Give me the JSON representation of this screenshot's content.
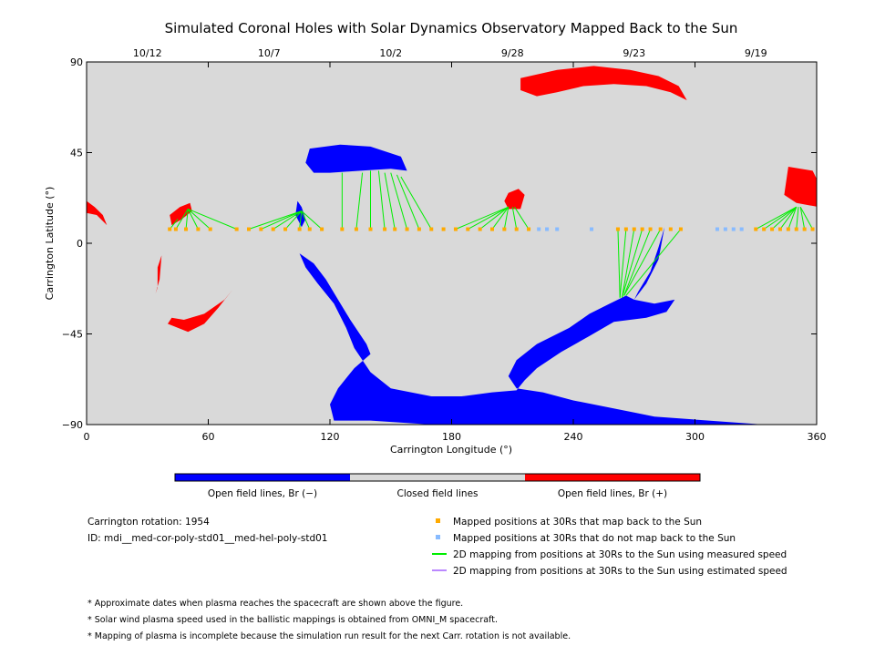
{
  "chart_data": {
    "type": "scatter",
    "title": "Simulated Coronal Holes with Solar Dynamics Observatory Mapped Back to the Sun",
    "xlabel": "Carrington Longitude (°)",
    "ylabel": "Carrington Latitude (°)",
    "xlim": [
      0,
      360
    ],
    "ylim": [
      -90,
      90
    ],
    "x_ticks": [
      {
        "value": 0,
        "label": "0"
      },
      {
        "value": 60,
        "label": "60"
      },
      {
        "value": 120,
        "label": "120"
      },
      {
        "value": 180,
        "label": "180"
      },
      {
        "value": 240,
        "label": "240"
      },
      {
        "value": 300,
        "label": "300"
      },
      {
        "value": 360,
        "label": "360"
      }
    ],
    "y_ticks": [
      {
        "value": 90,
        "label": "90"
      },
      {
        "value": 45,
        "label": "45"
      },
      {
        "value": 0,
        "label": "0"
      },
      {
        "value": -45,
        "label": "−45"
      },
      {
        "value": -90,
        "label": "−90"
      }
    ],
    "date_ticks": [
      {
        "lon": 30,
        "label": "10/12"
      },
      {
        "lon": 90,
        "label": "10/7"
      },
      {
        "lon": 150,
        "label": "10/2"
      },
      {
        "lon": 210,
        "label": "9/28"
      },
      {
        "lon": 270,
        "label": "9/23"
      },
      {
        "lon": 330,
        "label": "9/19"
      }
    ],
    "colors": {
      "open_negative": "#0000ff",
      "closed": "#d9d9d9",
      "open_positive": "#ff0000",
      "mapped_back": "#ffaa00",
      "not_mapped": "#88bbff",
      "measured_speed": "#00ee00",
      "estimated_speed": "#bb88ff"
    },
    "coronal_holes": {
      "negative": [
        [
          [
            105,
            -5
          ],
          [
            112,
            -10
          ],
          [
            118,
            -18
          ],
          [
            124,
            -28
          ],
          [
            130,
            -38
          ],
          [
            138,
            -50
          ],
          [
            140,
            -55
          ],
          [
            132,
            -62
          ],
          [
            124,
            -72
          ],
          [
            120,
            -80
          ],
          [
            122,
            -88
          ],
          [
            140,
            -88
          ],
          [
            170,
            -90
          ],
          [
            200,
            -90
          ],
          [
            240,
            -90
          ],
          [
            280,
            -90
          ],
          [
            330,
            -90
          ],
          [
            348,
            -91
          ],
          [
            320,
            -89
          ],
          [
            280,
            -86
          ],
          [
            270,
            -84
          ],
          [
            240,
            -78
          ],
          [
            225,
            -74
          ],
          [
            212,
            -72
          ],
          [
            208,
            -66
          ],
          [
            212,
            -58
          ],
          [
            222,
            -50
          ],
          [
            238,
            -42
          ],
          [
            248,
            -35
          ],
          [
            258,
            -30
          ],
          [
            266,
            -26
          ],
          [
            270,
            -28
          ],
          [
            280,
            -30
          ],
          [
            290,
            -28
          ],
          [
            286,
            -34
          ],
          [
            276,
            -37
          ],
          [
            260,
            -39
          ],
          [
            248,
            -46
          ],
          [
            234,
            -54
          ],
          [
            222,
            -62
          ],
          [
            216,
            -68
          ],
          [
            212,
            -73
          ],
          [
            200,
            -74
          ],
          [
            185,
            -76
          ],
          [
            170,
            -76
          ],
          [
            150,
            -72
          ],
          [
            140,
            -64
          ],
          [
            132,
            -52
          ],
          [
            128,
            -42
          ],
          [
            122,
            -30
          ],
          [
            114,
            -20
          ],
          [
            108,
            -12
          ]
        ],
        [
          [
            104,
            21
          ],
          [
            106,
            18
          ],
          [
            108,
            12
          ],
          [
            106,
            8
          ],
          [
            103,
            14
          ]
        ],
        [
          [
            110,
            47
          ],
          [
            125,
            49
          ],
          [
            140,
            48
          ],
          [
            155,
            43
          ],
          [
            158,
            36
          ],
          [
            150,
            37
          ],
          [
            135,
            36
          ],
          [
            120,
            35
          ],
          [
            112,
            35
          ],
          [
            108,
            40
          ]
        ],
        [
          [
            270,
            -28
          ],
          [
            276,
            -20
          ],
          [
            282,
            -8
          ],
          [
            285,
            8
          ],
          [
            282,
            -2
          ],
          [
            278,
            -14
          ],
          [
            272,
            -24
          ]
        ]
      ],
      "positive": [
        [
          [
            214,
            82
          ],
          [
            232,
            86
          ],
          [
            250,
            88
          ],
          [
            268,
            86
          ],
          [
            282,
            83
          ],
          [
            292,
            78
          ],
          [
            296,
            71
          ],
          [
            288,
            75
          ],
          [
            276,
            78
          ],
          [
            260,
            79
          ],
          [
            245,
            78
          ],
          [
            232,
            75
          ],
          [
            222,
            73
          ],
          [
            214,
            76
          ]
        ],
        [
          [
            40,
            -40
          ],
          [
            50,
            -44
          ],
          [
            58,
            -40
          ],
          [
            65,
            -32
          ],
          [
            72,
            -23
          ],
          [
            68,
            -28
          ],
          [
            58,
            -35
          ],
          [
            48,
            -38
          ],
          [
            42,
            -37
          ]
        ],
        [
          [
            0,
            21
          ],
          [
            4,
            18
          ],
          [
            8,
            14
          ],
          [
            10,
            9
          ],
          [
            5,
            14
          ],
          [
            0,
            15
          ]
        ],
        [
          [
            346,
            38
          ],
          [
            358,
            36
          ],
          [
            361,
            30
          ],
          [
            361,
            18
          ],
          [
            350,
            20
          ],
          [
            344,
            24
          ]
        ],
        [
          [
            208,
            25
          ],
          [
            213,
            27
          ],
          [
            216,
            24
          ],
          [
            214,
            17
          ],
          [
            208,
            17
          ],
          [
            206,
            21
          ]
        ],
        [
          [
            41,
            14
          ],
          [
            46,
            18
          ],
          [
            51,
            20
          ],
          [
            52,
            16
          ],
          [
            47,
            12
          ],
          [
            42,
            9
          ]
        ],
        [
          [
            37,
            -6
          ],
          [
            35,
            -12
          ],
          [
            35,
            -22
          ],
          [
            34,
            -25
          ],
          [
            36,
            -18
          ]
        ]
      ]
    },
    "mapped_positions_30rs": [
      {
        "lon": 41,
        "lat": 7
      },
      {
        "lon": 44,
        "lat": 7
      },
      {
        "lon": 49,
        "lat": 7
      },
      {
        "lon": 55,
        "lat": 7
      },
      {
        "lon": 61,
        "lat": 7
      },
      {
        "lon": 74,
        "lat": 7
      },
      {
        "lon": 80,
        "lat": 7
      },
      {
        "lon": 86,
        "lat": 7
      },
      {
        "lon": 92,
        "lat": 7
      },
      {
        "lon": 98,
        "lat": 7
      },
      {
        "lon": 105,
        "lat": 7
      },
      {
        "lon": 110,
        "lat": 7
      },
      {
        "lon": 116,
        "lat": 7
      },
      {
        "lon": 126,
        "lat": 7
      },
      {
        "lon": 133,
        "lat": 7
      },
      {
        "lon": 140,
        "lat": 7
      },
      {
        "lon": 147,
        "lat": 7
      },
      {
        "lon": 152,
        "lat": 7
      },
      {
        "lon": 158,
        "lat": 7
      },
      {
        "lon": 164,
        "lat": 7
      },
      {
        "lon": 170,
        "lat": 7
      },
      {
        "lon": 176,
        "lat": 7
      },
      {
        "lon": 182,
        "lat": 7
      },
      {
        "lon": 188,
        "lat": 7
      },
      {
        "lon": 194,
        "lat": 7
      },
      {
        "lon": 200,
        "lat": 7
      },
      {
        "lon": 206,
        "lat": 7
      },
      {
        "lon": 212,
        "lat": 7
      },
      {
        "lon": 218,
        "lat": 7
      },
      {
        "lon": 262,
        "lat": 7
      },
      {
        "lon": 266,
        "lat": 7
      },
      {
        "lon": 270,
        "lat": 7
      },
      {
        "lon": 274,
        "lat": 7
      },
      {
        "lon": 278,
        "lat": 7
      },
      {
        "lon": 283,
        "lat": 7
      },
      {
        "lon": 288,
        "lat": 7
      },
      {
        "lon": 293,
        "lat": 7
      },
      {
        "lon": 330,
        "lat": 7
      },
      {
        "lon": 334,
        "lat": 7
      },
      {
        "lon": 338,
        "lat": 7
      },
      {
        "lon": 342,
        "lat": 7
      },
      {
        "lon": 346,
        "lat": 7
      },
      {
        "lon": 350,
        "lat": 7
      },
      {
        "lon": 354,
        "lat": 7
      },
      {
        "lon": 358,
        "lat": 7
      }
    ],
    "unmapped_positions_30rs": [
      {
        "lon": 223,
        "lat": 7
      },
      {
        "lon": 227,
        "lat": 7
      },
      {
        "lon": 232,
        "lat": 7
      },
      {
        "lon": 249,
        "lat": 7
      },
      {
        "lon": 311,
        "lat": 7
      },
      {
        "lon": 315,
        "lat": 7
      },
      {
        "lon": 319,
        "lat": 7
      },
      {
        "lon": 323,
        "lat": 7
      }
    ],
    "mapping_lines_measured": [
      {
        "from": [
          44,
          7
        ],
        "to": [
          50,
          17
        ]
      },
      {
        "from": [
          49,
          7
        ],
        "to": [
          50,
          17
        ]
      },
      {
        "from": [
          55,
          7
        ],
        "to": [
          50,
          17
        ]
      },
      {
        "from": [
          61,
          7
        ],
        "to": [
          50,
          17
        ]
      },
      {
        "from": [
          74,
          7
        ],
        "to": [
          50,
          17
        ]
      },
      {
        "from": [
          41,
          7
        ],
        "to": [
          45,
          12
        ]
      },
      {
        "from": [
          80,
          7
        ],
        "to": [
          106,
          16
        ]
      },
      {
        "from": [
          86,
          7
        ],
        "to": [
          106,
          16
        ]
      },
      {
        "from": [
          92,
          7
        ],
        "to": [
          106,
          16
        ]
      },
      {
        "from": [
          98,
          7
        ],
        "to": [
          106,
          16
        ]
      },
      {
        "from": [
          105,
          7
        ],
        "to": [
          106,
          16
        ]
      },
      {
        "from": [
          110,
          7
        ],
        "to": [
          106,
          16
        ]
      },
      {
        "from": [
          116,
          7
        ],
        "to": [
          106,
          16
        ]
      },
      {
        "from": [
          126,
          7
        ],
        "to": [
          126,
          35
        ]
      },
      {
        "from": [
          133,
          7
        ],
        "to": [
          136,
          35
        ]
      },
      {
        "from": [
          140,
          7
        ],
        "to": [
          140,
          36
        ]
      },
      {
        "from": [
          147,
          7
        ],
        "to": [
          144,
          36
        ]
      },
      {
        "from": [
          152,
          7
        ],
        "to": [
          147,
          35
        ]
      },
      {
        "from": [
          158,
          7
        ],
        "to": [
          150,
          35
        ]
      },
      {
        "from": [
          164,
          7
        ],
        "to": [
          153,
          34
        ]
      },
      {
        "from": [
          170,
          7
        ],
        "to": [
          155,
          33
        ]
      },
      {
        "from": [
          182,
          7
        ],
        "to": [
          208,
          18
        ]
      },
      {
        "from": [
          188,
          7
        ],
        "to": [
          208,
          18
        ]
      },
      {
        "from": [
          194,
          7
        ],
        "to": [
          208,
          18
        ]
      },
      {
        "from": [
          200,
          7
        ],
        "to": [
          208,
          18
        ]
      },
      {
        "from": [
          206,
          7
        ],
        "to": [
          208,
          18
        ]
      },
      {
        "from": [
          212,
          7
        ],
        "to": [
          210,
          18
        ]
      },
      {
        "from": [
          218,
          7
        ],
        "to": [
          211,
          18
        ]
      },
      {
        "from": [
          262,
          7
        ],
        "to": [
          263,
          -27
        ]
      },
      {
        "from": [
          266,
          7
        ],
        "to": [
          263,
          -27
        ]
      },
      {
        "from": [
          270,
          7
        ],
        "to": [
          264,
          -27
        ]
      },
      {
        "from": [
          274,
          7
        ],
        "to": [
          264,
          -27
        ]
      },
      {
        "from": [
          278,
          7
        ],
        "to": [
          265,
          -26
        ]
      },
      {
        "from": [
          283,
          7
        ],
        "to": [
          265,
          -26
        ]
      },
      {
        "from": [
          293,
          7
        ],
        "to": [
          266,
          -26
        ]
      },
      {
        "from": [
          330,
          7
        ],
        "to": [
          350,
          18
        ]
      },
      {
        "from": [
          334,
          7
        ],
        "to": [
          350,
          18
        ]
      },
      {
        "from": [
          338,
          7
        ],
        "to": [
          350,
          18
        ]
      },
      {
        "from": [
          342,
          7
        ],
        "to": [
          350,
          18
        ]
      },
      {
        "from": [
          346,
          7
        ],
        "to": [
          350,
          18
        ]
      },
      {
        "from": [
          350,
          7
        ],
        "to": [
          351,
          18
        ]
      },
      {
        "from": [
          354,
          7
        ],
        "to": [
          352,
          18
        ]
      },
      {
        "from": [
          358,
          7
        ],
        "to": [
          352,
          18
        ]
      }
    ],
    "colorbar": {
      "segments": [
        {
          "label": "Open field lines, Br (−)",
          "color": "#0000ff"
        },
        {
          "label": "Closed field lines",
          "color": "#d9d9d9"
        },
        {
          "label": "Open field lines, Br (+)",
          "color": "#ff0000"
        }
      ]
    },
    "legend": [
      {
        "kind": "marker",
        "color": "#ffaa00",
        "label": "Mapped positions at 30Rs that map back to the Sun"
      },
      {
        "kind": "marker",
        "color": "#88bbff",
        "label": "Mapped positions at 30Rs that do not map back to the Sun"
      },
      {
        "kind": "line",
        "color": "#00ee00",
        "label": "2D mapping from positions at 30Rs to the Sun using measured speed"
      },
      {
        "kind": "line",
        "color": "#bb88ff",
        "label": "2D mapping from positions at 30Rs to the Sun using estimated speed"
      }
    ]
  },
  "info": {
    "rotation": "Carrington rotation: 1954",
    "id": "ID: mdi__med-cor-poly-std01__med-hel-poly-std01"
  },
  "notes": [
    "* Approximate dates when plasma reaches the spacecraft are shown above the figure.",
    "* Solar wind plasma speed used in the ballistic mappings is obtained from OMNI_M spacecraft.",
    "* Mapping of plasma is incomplete because the simulation run result for the next Carr. rotation is not available."
  ]
}
